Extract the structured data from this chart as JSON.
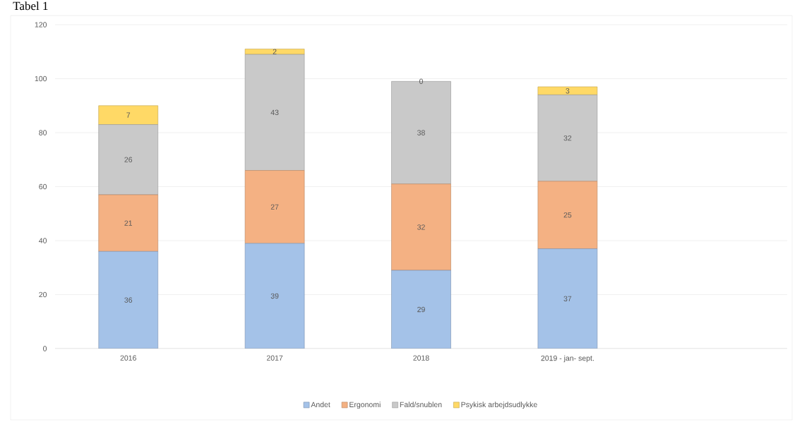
{
  "chart_data": {
    "type": "bar",
    "title": "Tabel 1",
    "stacked": true,
    "data_labels": true,
    "grid": "y",
    "legend": "bottom",
    "categories": [
      "2016",
      "2017",
      "2018",
      "2019 - jan- sept.",
      null
    ],
    "series": [
      {
        "name": "Andet",
        "color": "#a4c2e8",
        "values": [
          36,
          39,
          29,
          37,
          null
        ]
      },
      {
        "name": "Ergonomi",
        "color": "#f4b183",
        "values": [
          21,
          27,
          32,
          25,
          null
        ]
      },
      {
        "name": "Fald/snublen",
        "color": "#c9c9c9",
        "values": [
          26,
          43,
          38,
          32,
          null
        ]
      },
      {
        "name": "Psykisk arbejdsudlykke",
        "color": "#ffd966",
        "values": [
          7,
          2,
          0,
          3,
          null
        ]
      }
    ],
    "ylim": [
      0,
      120
    ],
    "yticks": [
      0,
      20,
      40,
      60,
      80,
      100,
      120
    ]
  }
}
